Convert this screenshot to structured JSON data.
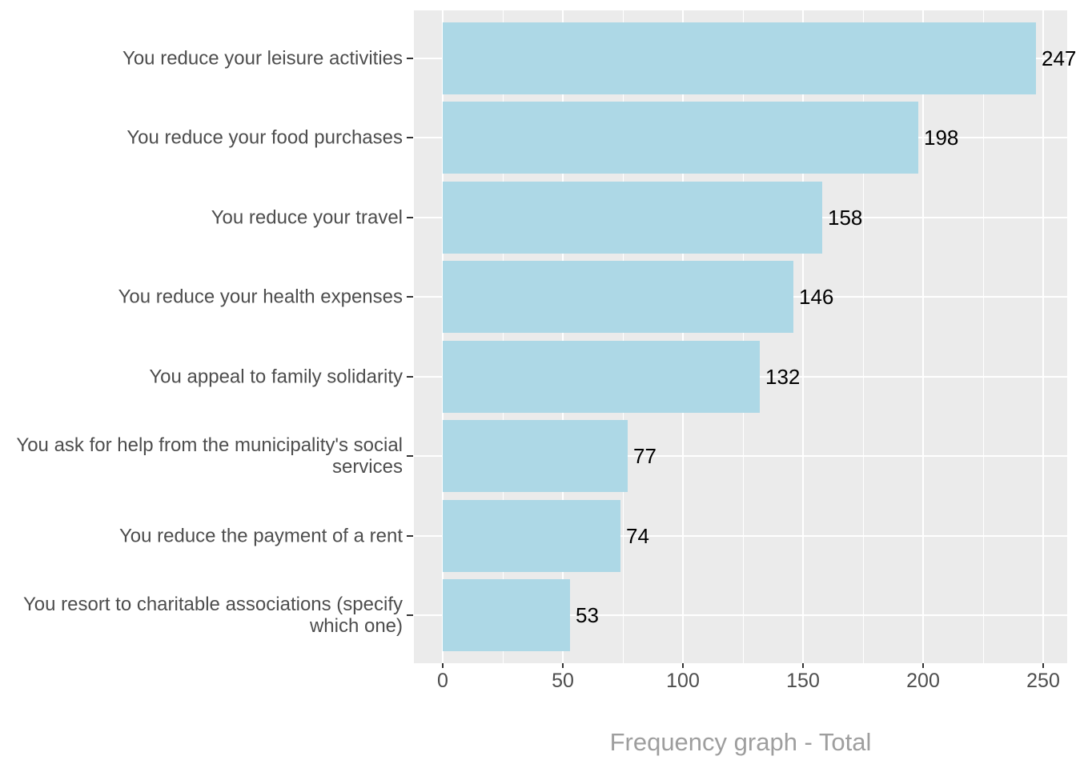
{
  "chart_data": {
    "type": "bar",
    "orientation": "horizontal",
    "title": "Frequency graph - Total",
    "categories": [
      "You reduce your leisure activities",
      "You reduce your food purchases",
      "You reduce your travel",
      "You reduce your health expenses",
      "You appeal to family solidarity",
      "You ask for help from the municipality's social\nservices",
      "You reduce the payment of a rent",
      "You resort to charitable associations (specify\nwhich one)"
    ],
    "values": [
      247,
      198,
      158,
      146,
      132,
      77,
      74,
      53
    ],
    "value_labels": [
      "247",
      "198",
      "158",
      "146",
      "132",
      "77",
      "74",
      "53"
    ],
    "xlabel": "",
    "ylabel": "",
    "xlim": [
      0,
      250
    ],
    "x_ticks": [
      0,
      50,
      100,
      150,
      200,
      250
    ],
    "x_tick_labels": [
      "0",
      "50",
      "100",
      "150",
      "200",
      "250"
    ],
    "x_minor_ticks": [
      25,
      75,
      125,
      175,
      225
    ],
    "grid": "major-and-minor, white on gray panel",
    "legend": "none",
    "colors": {
      "bar_fill": "#ADD8E6",
      "panel_background": "#EBEBEB",
      "gridline": "#FFFFFF",
      "axis_text": "#4D4D4D",
      "tick_mark": "#333333",
      "value_text": "#000000",
      "title_text": "#9E9E9E",
      "page_background": "#FFFFFF"
    }
  }
}
